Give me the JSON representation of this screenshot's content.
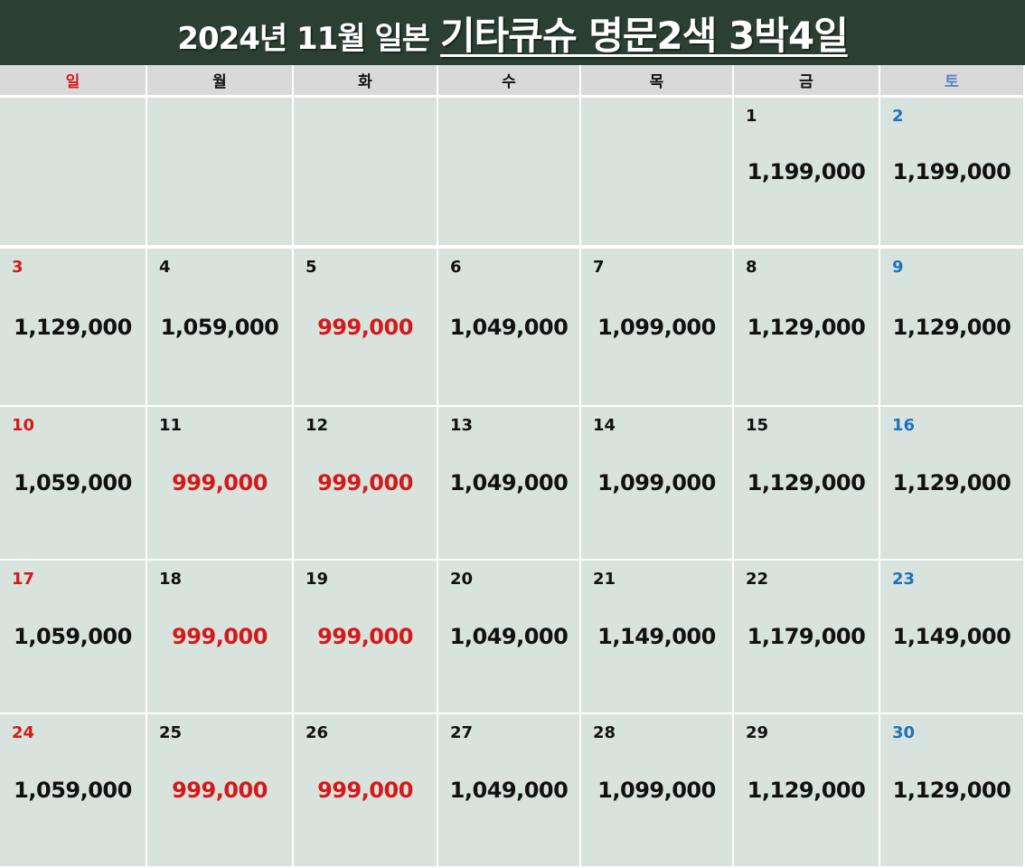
{
  "title": {
    "main": "2024년 11월 일본",
    "highlight": "기타큐슈 명문2색 3박4일"
  },
  "colors": {
    "title_bg": "#2b3f33",
    "header_bg": "#d9d9d9",
    "cell_bg": "#d9e3de",
    "sunday": "#d31a1a",
    "saturday": "#1e73b8",
    "lowest_price": "#d31a1a"
  },
  "weekdays": [
    {
      "label": "일",
      "type": "sun"
    },
    {
      "label": "월",
      "type": "weekday"
    },
    {
      "label": "화",
      "type": "weekday"
    },
    {
      "label": "수",
      "type": "weekday"
    },
    {
      "label": "목",
      "type": "weekday"
    },
    {
      "label": "금",
      "type": "weekday"
    },
    {
      "label": "토",
      "type": "sat"
    }
  ],
  "weeks": [
    [
      {
        "day": "",
        "price": "",
        "low": false
      },
      {
        "day": "",
        "price": "",
        "low": false
      },
      {
        "day": "",
        "price": "",
        "low": false
      },
      {
        "day": "",
        "price": "",
        "low": false
      },
      {
        "day": "",
        "price": "",
        "low": false
      },
      {
        "day": "1",
        "price": "1,199,000",
        "low": false
      },
      {
        "day": "2",
        "price": "1,199,000",
        "low": false
      }
    ],
    [
      {
        "day": "3",
        "price": "1,129,000",
        "low": false
      },
      {
        "day": "4",
        "price": "1,059,000",
        "low": false
      },
      {
        "day": "5",
        "price": "999,000",
        "low": true
      },
      {
        "day": "6",
        "price": "1,049,000",
        "low": false
      },
      {
        "day": "7",
        "price": "1,099,000",
        "low": false
      },
      {
        "day": "8",
        "price": "1,129,000",
        "low": false
      },
      {
        "day": "9",
        "price": "1,129,000",
        "low": false
      }
    ],
    [
      {
        "day": "10",
        "price": "1,059,000",
        "low": false
      },
      {
        "day": "11",
        "price": "999,000",
        "low": true
      },
      {
        "day": "12",
        "price": "999,000",
        "low": true
      },
      {
        "day": "13",
        "price": "1,049,000",
        "low": false
      },
      {
        "day": "14",
        "price": "1,099,000",
        "low": false
      },
      {
        "day": "15",
        "price": "1,129,000",
        "low": false
      },
      {
        "day": "16",
        "price": "1,129,000",
        "low": false
      }
    ],
    [
      {
        "day": "17",
        "price": "1,059,000",
        "low": false
      },
      {
        "day": "18",
        "price": "999,000",
        "low": true
      },
      {
        "day": "19",
        "price": "999,000",
        "low": true
      },
      {
        "day": "20",
        "price": "1,049,000",
        "low": false
      },
      {
        "day": "21",
        "price": "1,149,000",
        "low": false
      },
      {
        "day": "22",
        "price": "1,179,000",
        "low": false
      },
      {
        "day": "23",
        "price": "1,149,000",
        "low": false
      }
    ],
    [
      {
        "day": "24",
        "price": "1,059,000",
        "low": false
      },
      {
        "day": "25",
        "price": "999,000",
        "low": true
      },
      {
        "day": "26",
        "price": "999,000",
        "low": true
      },
      {
        "day": "27",
        "price": "1,049,000",
        "low": false
      },
      {
        "day": "28",
        "price": "1,099,000",
        "low": false
      },
      {
        "day": "29",
        "price": "1,129,000",
        "low": false
      },
      {
        "day": "30",
        "price": "1,129,000",
        "low": false
      }
    ]
  ]
}
